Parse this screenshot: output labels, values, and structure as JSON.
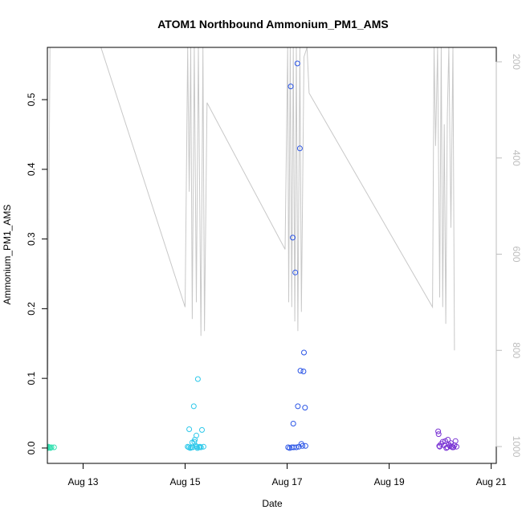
{
  "chart_data": {
    "type": "scatter",
    "title": "ATOM1 Northbound Ammonium_PM1_AMS",
    "xlabel": "Date",
    "ylabel": "Ammonium_PM1_AMS",
    "xlim": [
      12.3,
      21.1
    ],
    "ylim": [
      -0.022,
      0.575
    ],
    "x_ticks": [
      {
        "value": 13,
        "label": "Aug 13"
      },
      {
        "value": 15,
        "label": "Aug 15"
      },
      {
        "value": 17,
        "label": "Aug 17"
      },
      {
        "value": 19,
        "label": "Aug 19"
      },
      {
        "value": 21,
        "label": "Aug 21"
      }
    ],
    "y_ticks": [
      {
        "value": 0.0,
        "label": "0.0"
      },
      {
        "value": 0.1,
        "label": "0.1"
      },
      {
        "value": 0.2,
        "label": "0.2"
      },
      {
        "value": 0.3,
        "label": "0.3"
      },
      {
        "value": 0.4,
        "label": "0.4"
      },
      {
        "value": 0.5,
        "label": "0.5"
      }
    ],
    "y2_axis": {
      "reversed": true,
      "lim": [
        1035,
        170
      ],
      "color": "#bdbdbd",
      "ticks": [
        {
          "value": 200,
          "label": "200"
        },
        {
          "value": 400,
          "label": "400"
        },
        {
          "value": 600,
          "label": "600"
        },
        {
          "value": 800,
          "label": "800"
        },
        {
          "value": 1000,
          "label": "1000"
        }
      ]
    },
    "background_line": {
      "color": "#c8c8c8",
      "axis": "y2",
      "points": [
        [
          12.28,
          170
        ],
        [
          12.29,
          335
        ],
        [
          12.31,
          852
        ],
        [
          12.35,
          170
        ],
        [
          12.39,
          170
        ],
        [
          13.35,
          170
        ],
        [
          15.0,
          710
        ],
        [
          15.05,
          170
        ],
        [
          15.08,
          470
        ],
        [
          15.11,
          170
        ],
        [
          15.14,
          735
        ],
        [
          15.18,
          170
        ],
        [
          15.22,
          700
        ],
        [
          15.26,
          170
        ],
        [
          15.31,
          770
        ],
        [
          15.35,
          170
        ],
        [
          15.38,
          760
        ],
        [
          15.43,
          285
        ],
        [
          16.96,
          590
        ],
        [
          17.01,
          170
        ],
        [
          17.03,
          700
        ],
        [
          17.06,
          170
        ],
        [
          17.09,
          710
        ],
        [
          17.12,
          170
        ],
        [
          17.15,
          740
        ],
        [
          17.18,
          170
        ],
        [
          17.21,
          760
        ],
        [
          17.25,
          170
        ],
        [
          17.28,
          720
        ],
        [
          17.33,
          190
        ],
        [
          17.39,
          170
        ],
        [
          17.43,
          265
        ],
        [
          19.85,
          710
        ],
        [
          19.88,
          170
        ],
        [
          19.91,
          375
        ],
        [
          19.95,
          170
        ],
        [
          19.99,
          690
        ],
        [
          20.02,
          170
        ],
        [
          20.05,
          710
        ],
        [
          20.08,
          330
        ],
        [
          20.11,
          745
        ],
        [
          20.14,
          315
        ],
        [
          20.17,
          170
        ],
        [
          20.21,
          545
        ],
        [
          20.25,
          170
        ],
        [
          20.28,
          800
        ]
      ]
    },
    "series": [
      {
        "color": "#33e0b0",
        "points": [
          [
            12.28,
            0.0
          ],
          [
            12.3,
            0.001
          ],
          [
            12.31,
            0.0
          ],
          [
            12.32,
            0.002
          ],
          [
            12.34,
            0.001
          ],
          [
            12.36,
            0.0
          ],
          [
            12.38,
            0.001
          ],
          [
            12.43,
            0.001
          ]
        ]
      },
      {
        "color": "#2cc8ea",
        "points": [
          [
            15.05,
            0.002
          ],
          [
            15.07,
            0.001
          ],
          [
            15.08,
            0.027
          ],
          [
            15.1,
            0.0
          ],
          [
            15.12,
            0.001
          ],
          [
            15.14,
            0.008
          ],
          [
            15.15,
            0.001
          ],
          [
            15.17,
            0.06
          ],
          [
            15.18,
            0.009
          ],
          [
            15.19,
            0.012
          ],
          [
            15.21,
            0.003
          ],
          [
            15.22,
            0.018
          ],
          [
            15.23,
            0.002
          ],
          [
            15.24,
            0.0
          ],
          [
            15.25,
            0.099
          ],
          [
            15.27,
            0.001
          ],
          [
            15.29,
            0.002
          ],
          [
            15.31,
            0.001
          ],
          [
            15.33,
            0.026
          ],
          [
            15.36,
            0.002
          ]
        ]
      },
      {
        "color": "#2b55e6",
        "points": [
          [
            17.02,
            0.001
          ],
          [
            17.05,
            0.0
          ],
          [
            17.07,
            0.519
          ],
          [
            17.09,
            0.001
          ],
          [
            17.11,
            0.302
          ],
          [
            17.12,
            0.035
          ],
          [
            17.13,
            0.001
          ],
          [
            17.16,
            0.252
          ],
          [
            17.18,
            0.001
          ],
          [
            17.2,
            0.552
          ],
          [
            17.21,
            0.06
          ],
          [
            17.23,
            0.002
          ],
          [
            17.25,
            0.43
          ],
          [
            17.26,
            0.111
          ],
          [
            17.28,
            0.006
          ],
          [
            17.3,
            0.003
          ],
          [
            17.32,
            0.11
          ],
          [
            17.33,
            0.137
          ],
          [
            17.35,
            0.058
          ],
          [
            17.36,
            0.003
          ]
        ]
      },
      {
        "color": "#7a34d4",
        "points": [
          [
            19.96,
            0.024
          ],
          [
            19.97,
            0.02
          ],
          [
            19.98,
            0.003
          ],
          [
            19.99,
            0.002
          ],
          [
            20.02,
            0.006
          ],
          [
            20.05,
            0.009
          ],
          [
            20.08,
            0.004
          ],
          [
            20.1,
            0.01
          ],
          [
            20.12,
            0.0
          ],
          [
            20.14,
            0.001
          ],
          [
            20.15,
            0.012
          ],
          [
            20.17,
            0.005
          ],
          [
            20.19,
            0.003
          ],
          [
            20.21,
            0.007
          ],
          [
            20.22,
            0.002
          ],
          [
            20.24,
            0.001
          ],
          [
            20.26,
            0.001
          ],
          [
            20.28,
            0.004
          ],
          [
            20.3,
            0.01
          ],
          [
            20.32,
            0.002
          ]
        ]
      }
    ]
  }
}
